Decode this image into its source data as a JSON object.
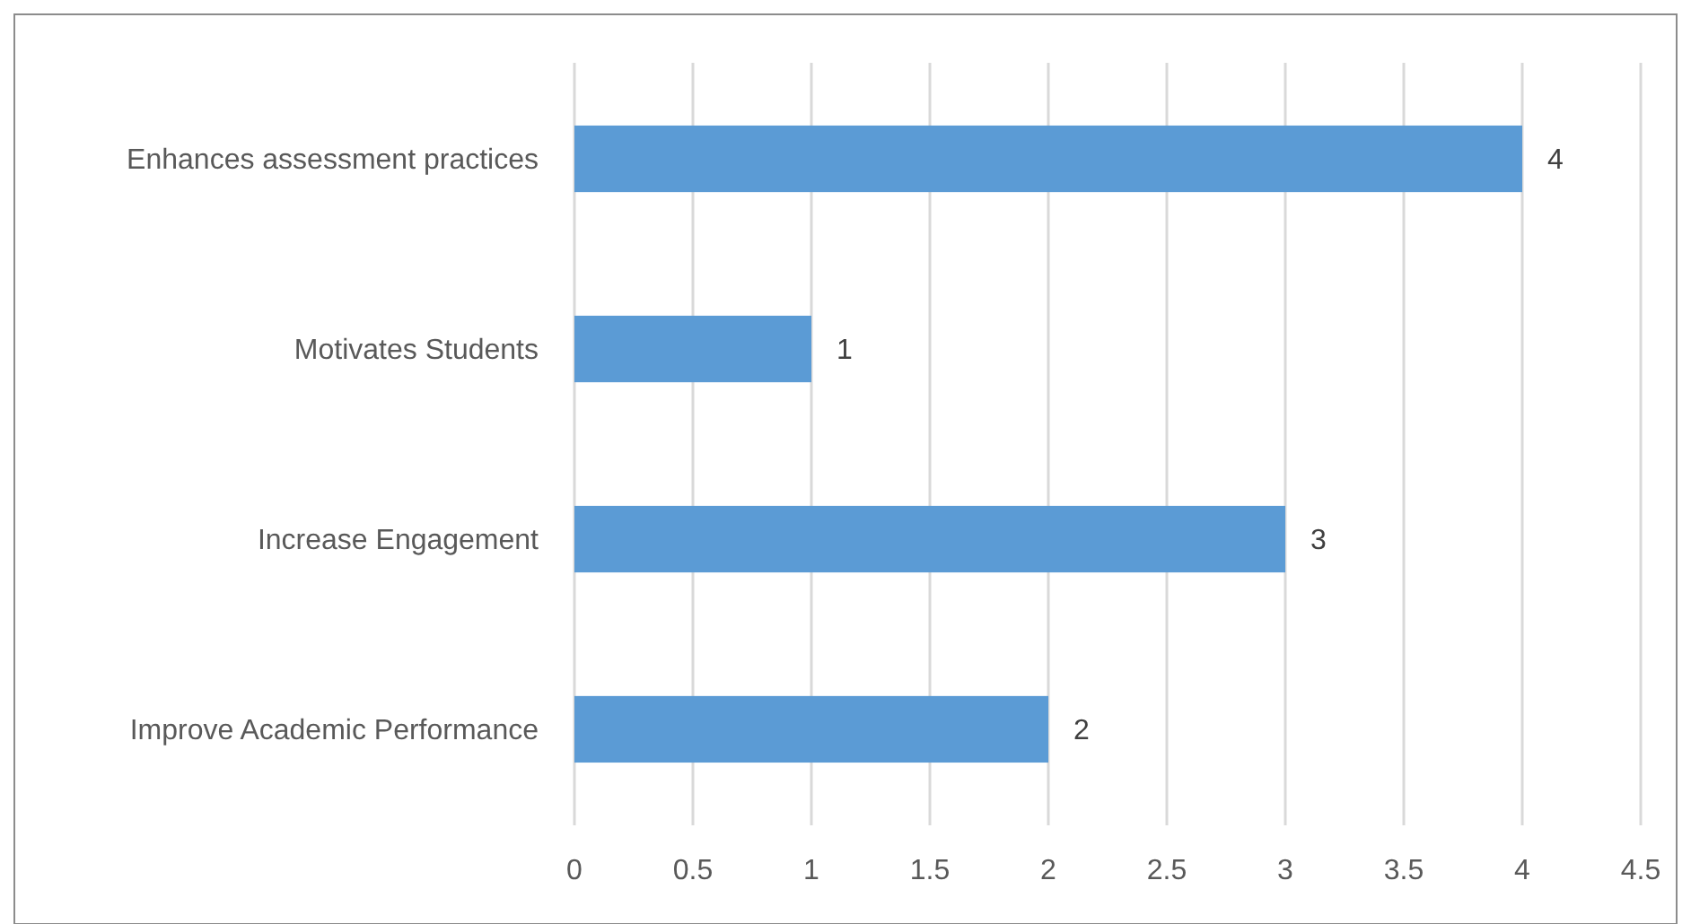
{
  "chart_data": {
    "type": "bar",
    "orientation": "horizontal",
    "categories": [
      "Enhances assessment practices",
      "Motivates Students",
      "Increase Engagement",
      "Improve Academic Performance"
    ],
    "values": [
      4,
      1,
      3,
      2
    ],
    "color": "#5b9bd5",
    "xlim": [
      0,
      4.5
    ],
    "xticks": [
      0,
      0.5,
      1,
      1.5,
      2,
      2.5,
      3,
      3.5,
      4,
      4.5
    ],
    "grid": "x",
    "data_labels": true
  }
}
